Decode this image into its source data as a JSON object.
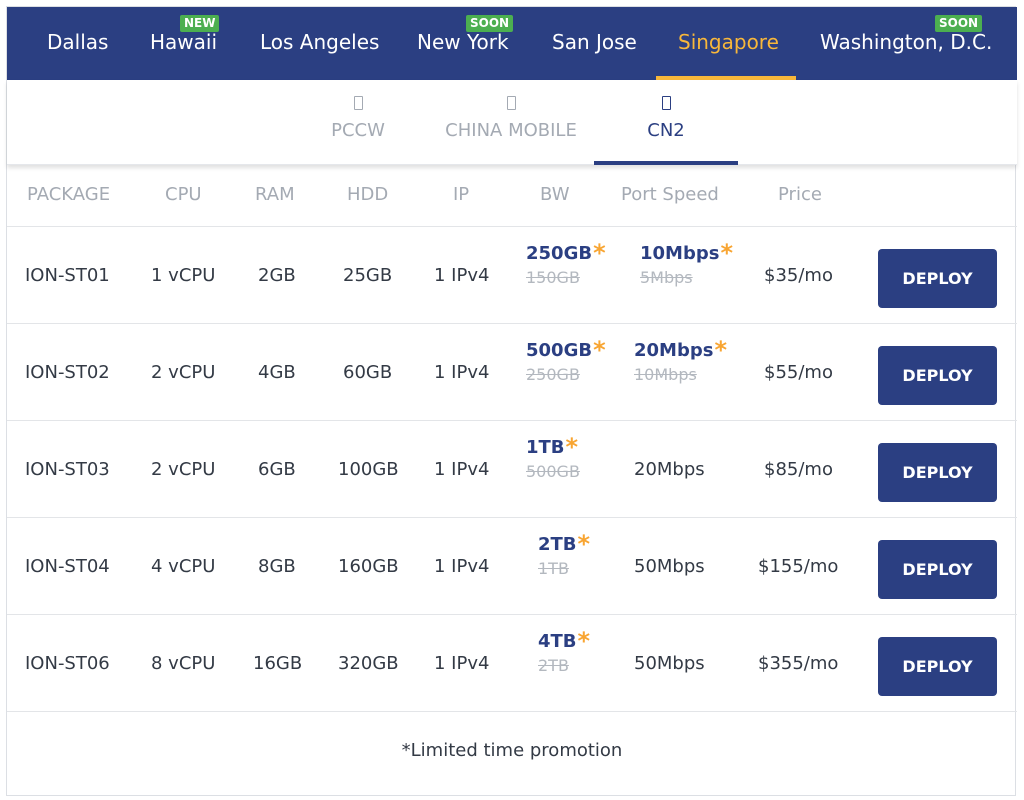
{
  "locations": [
    {
      "label": "Dallas",
      "badge": ""
    },
    {
      "label": "Hawaii",
      "badge": "NEW"
    },
    {
      "label": "Los Angeles",
      "badge": ""
    },
    {
      "label": "New York",
      "badge": "SOON"
    },
    {
      "label": "San Jose",
      "badge": ""
    },
    {
      "label": "Singapore",
      "badge": "",
      "active": true
    },
    {
      "label": "Washington, D.C.",
      "badge": "SOON"
    }
  ],
  "carriers": [
    {
      "label": "PCCW",
      "icon": "carrier-icon"
    },
    {
      "label": "CHINA MOBILE",
      "icon": "carrier-icon"
    },
    {
      "label": "CN2",
      "icon": "carrier-icon",
      "active": true
    }
  ],
  "table": {
    "headers": [
      "PACKAGE",
      "CPU",
      "RAM",
      "HDD",
      "IP",
      "BW",
      "Port Speed",
      "Price"
    ],
    "deploy_label": "DEPLOY",
    "rows": [
      {
        "package": "ION-ST01",
        "cpu": "1 vCPU",
        "ram": "2GB",
        "hdd": "25GB",
        "ip": "1 IPv4",
        "bw_new": "250GB",
        "bw_old": "150GB",
        "port_new": "10Mbps",
        "port_old": "5Mbps",
        "port": "",
        "price": "$35/mo"
      },
      {
        "package": "ION-ST02",
        "cpu": "2 vCPU",
        "ram": "4GB",
        "hdd": "60GB",
        "ip": "1 IPv4",
        "bw_new": "500GB",
        "bw_old": "250GB",
        "port_new": "20Mbps",
        "port_old": "10Mbps",
        "port": "",
        "price": "$55/mo"
      },
      {
        "package": "ION-ST03",
        "cpu": "2 vCPU",
        "ram": "6GB",
        "hdd": "100GB",
        "ip": "1 IPv4",
        "bw_new": "1TB",
        "bw_old": "500GB",
        "port_new": "",
        "port_old": "",
        "port": "20Mbps",
        "price": "$85/mo"
      },
      {
        "package": "ION-ST04",
        "cpu": "4 vCPU",
        "ram": "8GB",
        "hdd": "160GB",
        "ip": "1 IPv4",
        "bw_new": "2TB",
        "bw_old": "1TB",
        "port_new": "",
        "port_old": "",
        "port": "50Mbps",
        "price": "$155/mo"
      },
      {
        "package": "ION-ST06",
        "cpu": "8 vCPU",
        "ram": "16GB",
        "hdd": "320GB",
        "ip": "1 IPv4",
        "bw_new": "4TB",
        "bw_old": "2TB",
        "port_new": "",
        "port_old": "",
        "port": "50Mbps",
        "price": "$355/mo"
      }
    ]
  },
  "promo_star": "*",
  "footnote": "*Limited time promotion",
  "colors": {
    "primary": "#2b3f82",
    "accent": "#f8b73a",
    "badge": "#4caf50",
    "star": "#f8a532"
  }
}
